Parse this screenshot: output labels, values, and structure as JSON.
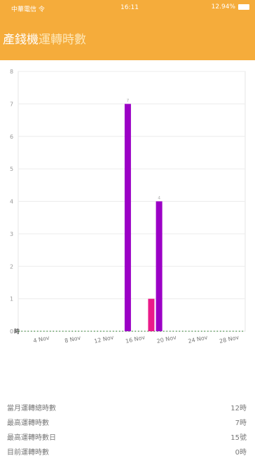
{
  "status": {
    "left": "中華電信 令",
    "time": "16:11",
    "battery": "12.94%"
  },
  "header": {
    "title_main": "產錢機",
    "title_sub": "運轉時數"
  },
  "colors": {
    "accent": "#f5ac3b",
    "series_main": "#9b00c6",
    "series_alt": "#ea1a8a"
  },
  "chart_data": {
    "type": "bar",
    "ylabel": "時",
    "ylim": [
      0,
      8
    ],
    "yticks": [
      "0",
      "1",
      "2",
      "3",
      "4",
      "5",
      "6",
      "7",
      "8"
    ],
    "x_tick_labels": [
      "4 Nov",
      "8 Nov",
      "12 Nov",
      "16 Nov",
      "20 Nov",
      "24 Nov",
      "28 Nov"
    ],
    "x_tick_days": [
      4,
      8,
      12,
      16,
      20,
      24,
      28
    ],
    "x_range_days": [
      1,
      30
    ],
    "bars": [
      {
        "day": 15,
        "value": 7,
        "label": "7",
        "color": "#9b00c6"
      },
      {
        "day": 18,
        "value": 1,
        "label": "",
        "color": "#ea1a8a"
      },
      {
        "day": 19,
        "value": 4,
        "label": "4",
        "color": "#9b00c6"
      }
    ],
    "grid": true
  },
  "stats": [
    {
      "label": "當月運轉總時數",
      "value": "12時"
    },
    {
      "label": "最高運轉時數",
      "value": "7時"
    },
    {
      "label": "最高運轉時數日",
      "value": "15號"
    },
    {
      "label": "目前運轉時數",
      "value": "0時"
    }
  ]
}
